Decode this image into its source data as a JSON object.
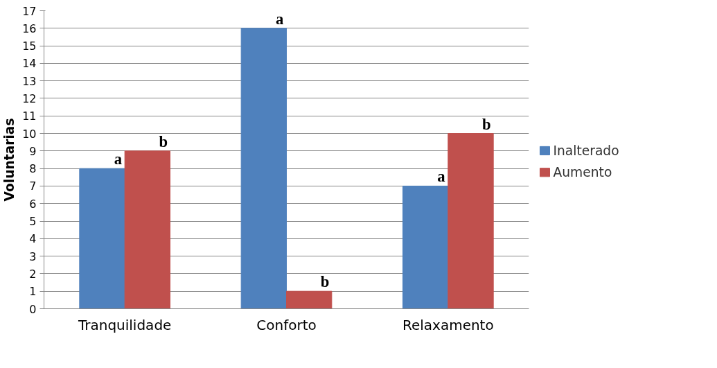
{
  "chart_data": {
    "type": "bar",
    "ylabel": "Voluntarias",
    "categories": [
      "Tranquilidade",
      "Conforto",
      "Relaxamento"
    ],
    "series": [
      {
        "name": "Inalterado",
        "color": "#4f81bd",
        "values": [
          8,
          16,
          7
        ]
      },
      {
        "name": "Aumento",
        "color": "#c0504d",
        "values": [
          9,
          1,
          10
        ]
      }
    ],
    "ylim": [
      0,
      17
    ],
    "yticks": [
      0,
      1,
      2,
      3,
      4,
      5,
      6,
      7,
      8,
      9,
      10,
      11,
      12,
      13,
      14,
      15,
      16,
      17
    ],
    "grid": "y",
    "legend": "right",
    "annotations": [
      {
        "text": "a",
        "x": "Tranquilidade",
        "y": 8
      },
      {
        "text": "b",
        "x": "Tranquilidade",
        "y": 9
      },
      {
        "text": "a",
        "x": "Conforto",
        "y": 16
      },
      {
        "text": "b",
        "x": "Conforto",
        "y": 1
      },
      {
        "text": "a",
        "x": "Relaxamento",
        "y": 7
      },
      {
        "text": "b",
        "x": "Relaxamento",
        "y": 10
      }
    ]
  }
}
